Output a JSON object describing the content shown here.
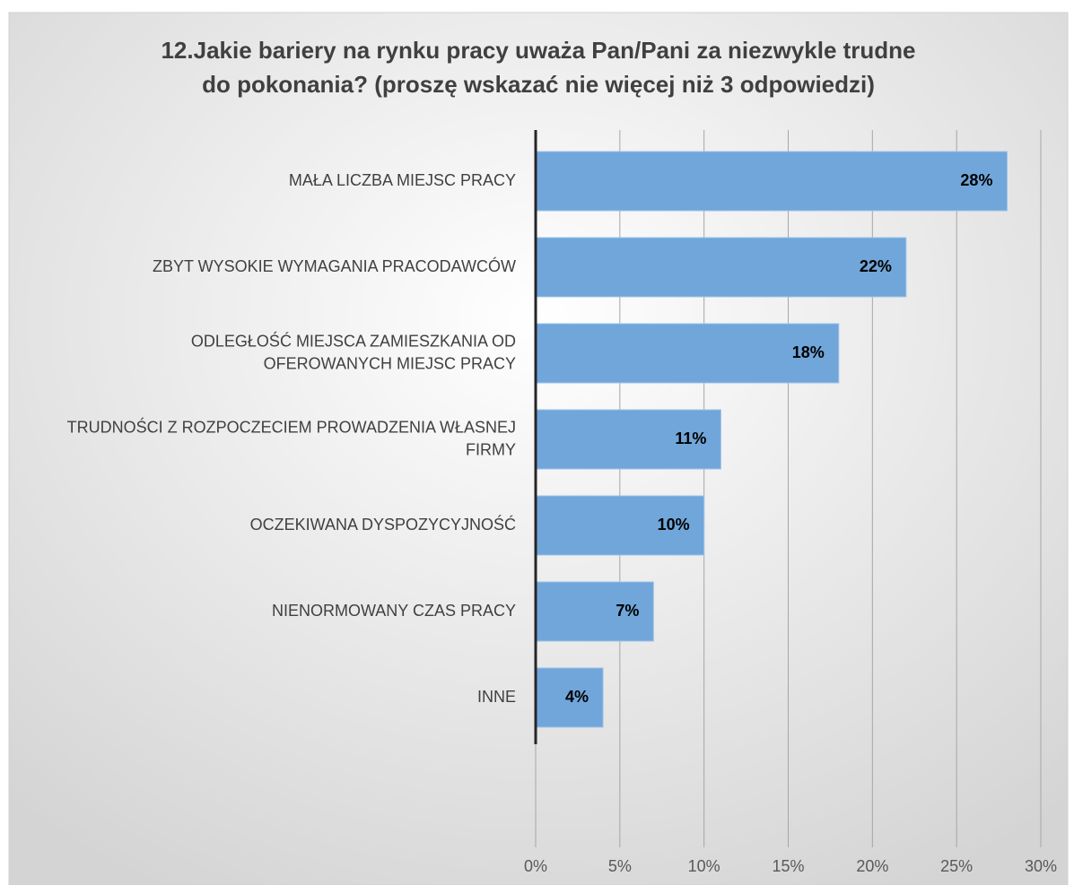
{
  "chart_data": {
    "type": "bar",
    "orientation": "horizontal",
    "title": "12.Jakie bariery na rynku pracy uważa Pan/Pani za niezwykle trudne\ndo pokonania? (proszę wskazać nie więcej niż 3 odpowiedzi)",
    "categories": [
      "MAŁA LICZBA MIEJSC PRACY",
      "ZBYT WYSOKIE WYMAGANIA PRACODAWCÓW",
      "ODLEGŁOŚĆ MIEJSCA ZAMIESZKANIA OD\nOFEROWANYCH MIEJSC PRACY",
      "TRUDNOŚCI Z ROZPOCZECIEM PROWADZENIA WŁASNEJ\nFIRMY",
      "OCZEKIWANA DYSPOZYCYJNOŚĆ",
      "NIENORMOWANY CZAS PRACY",
      "INNE"
    ],
    "values": [
      28,
      22,
      18,
      11,
      10,
      7,
      4
    ],
    "value_labels": [
      "28%",
      "22%",
      "18%",
      "11%",
      "10%",
      "7%",
      "4%"
    ],
    "color": "#70a6da",
    "xlim": [
      0,
      30
    ],
    "xticks": [
      {
        "value": 0,
        "label": "0%"
      },
      {
        "value": 5,
        "label": "5%"
      },
      {
        "value": 10,
        "label": "10%"
      },
      {
        "value": 15,
        "label": "15%"
      },
      {
        "value": 20,
        "label": "20%"
      },
      {
        "value": 25,
        "label": "25%"
      },
      {
        "value": 30,
        "label": "30%"
      }
    ],
    "grid": true
  }
}
